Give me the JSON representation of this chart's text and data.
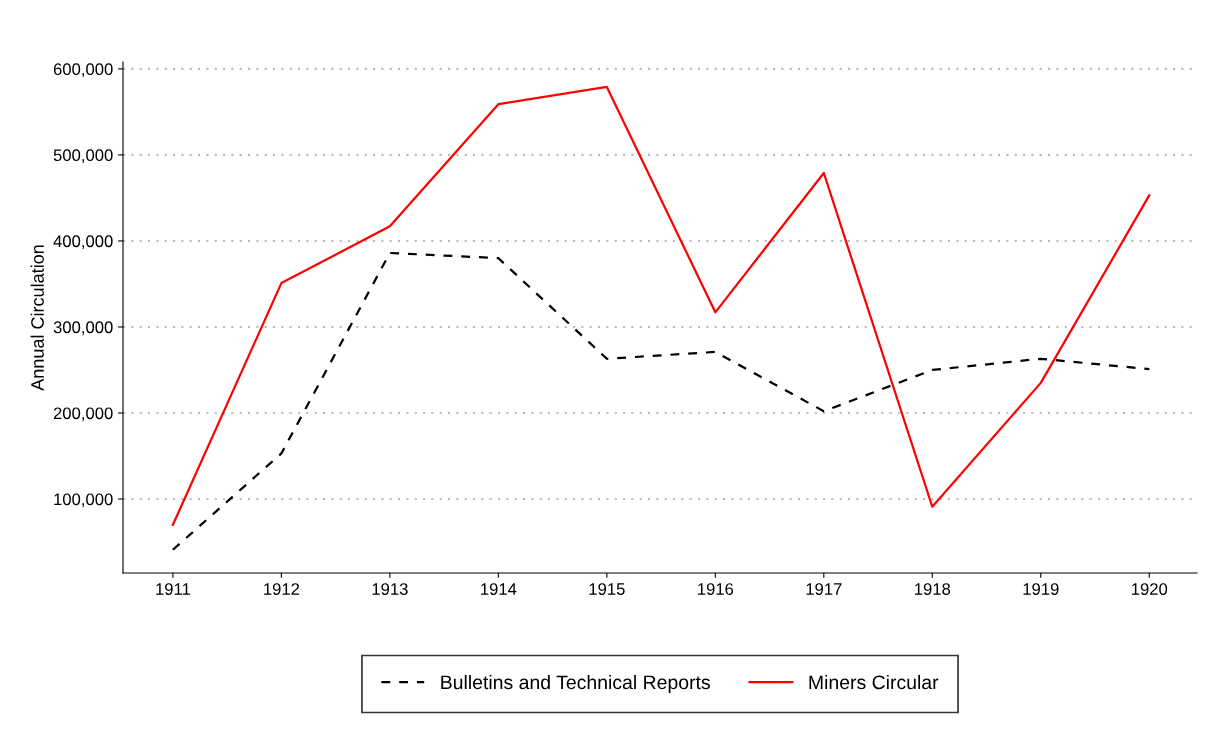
{
  "chart_data": {
    "type": "line",
    "ylabel": "Annual Circulation",
    "categories": [
      "1911",
      "1912",
      "1913",
      "1914",
      "1915",
      "1916",
      "1917",
      "1918",
      "1919",
      "1920"
    ],
    "series": [
      {
        "name": "Bulletins and Technical Reports",
        "color": "#000000",
        "line_style": "dashed",
        "values": [
          41000,
          153000,
          386000,
          380000,
          263000,
          271000,
          202000,
          250000,
          263000,
          251000
        ]
      },
      {
        "name": "Miners Circular",
        "color": "#ff0000",
        "line_style": "solid",
        "values": [
          70000,
          351000,
          417000,
          559000,
          579000,
          317000,
          479000,
          91000,
          235000,
          453000
        ]
      }
    ],
    "ylim": [
      14000,
      608000
    ],
    "yticks": [
      {
        "value": 100000,
        "label": "100,000"
      },
      {
        "value": 200000,
        "label": "200,000"
      },
      {
        "value": 300000,
        "label": "300,000"
      },
      {
        "value": 400000,
        "label": "400,000"
      },
      {
        "value": 500000,
        "label": "500,000"
      },
      {
        "value": 600000,
        "label": "600,000"
      }
    ],
    "grid": "y",
    "legend": "bottom"
  }
}
